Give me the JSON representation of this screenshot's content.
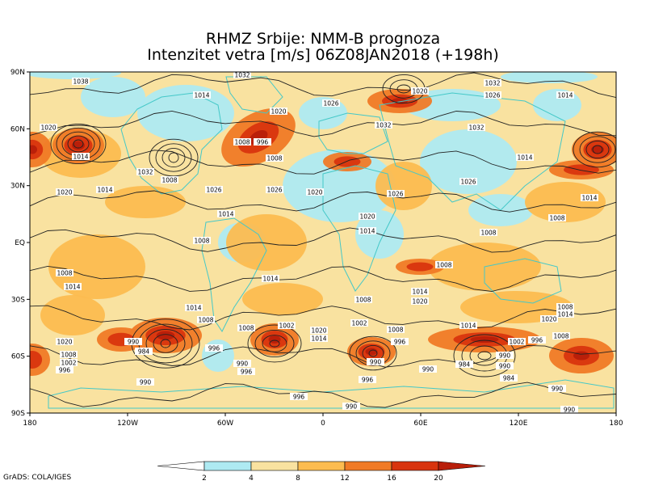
{
  "title_line1": "RHMZ Srbije: NMM-B prognoza",
  "title_line2": "Intenzitet vetra [m/s] 06Z08JAN2018 (+198h)",
  "credit": "GrADS: COLA/IGES",
  "lat_labels": [
    "90N",
    "60N",
    "30N",
    "EQ",
    "30S",
    "60S",
    "90S"
  ],
  "lon_labels": [
    "180",
    "120W",
    "60W",
    "0",
    "60E",
    "120E",
    "180"
  ],
  "colorbar": {
    "levels": [
      "2",
      "4",
      "8",
      "12",
      "16",
      "20"
    ],
    "colors": [
      "#ffffff",
      "#aeeaf2",
      "#f9e2a0",
      "#fcbc50",
      "#f07a26",
      "#d8340e",
      "#b81e0a"
    ]
  },
  "pressure_labels": [
    "1038",
    "1032",
    "1026",
    "1020",
    "1014",
    "1008",
    "1002",
    "996",
    "990",
    "984"
  ]
}
